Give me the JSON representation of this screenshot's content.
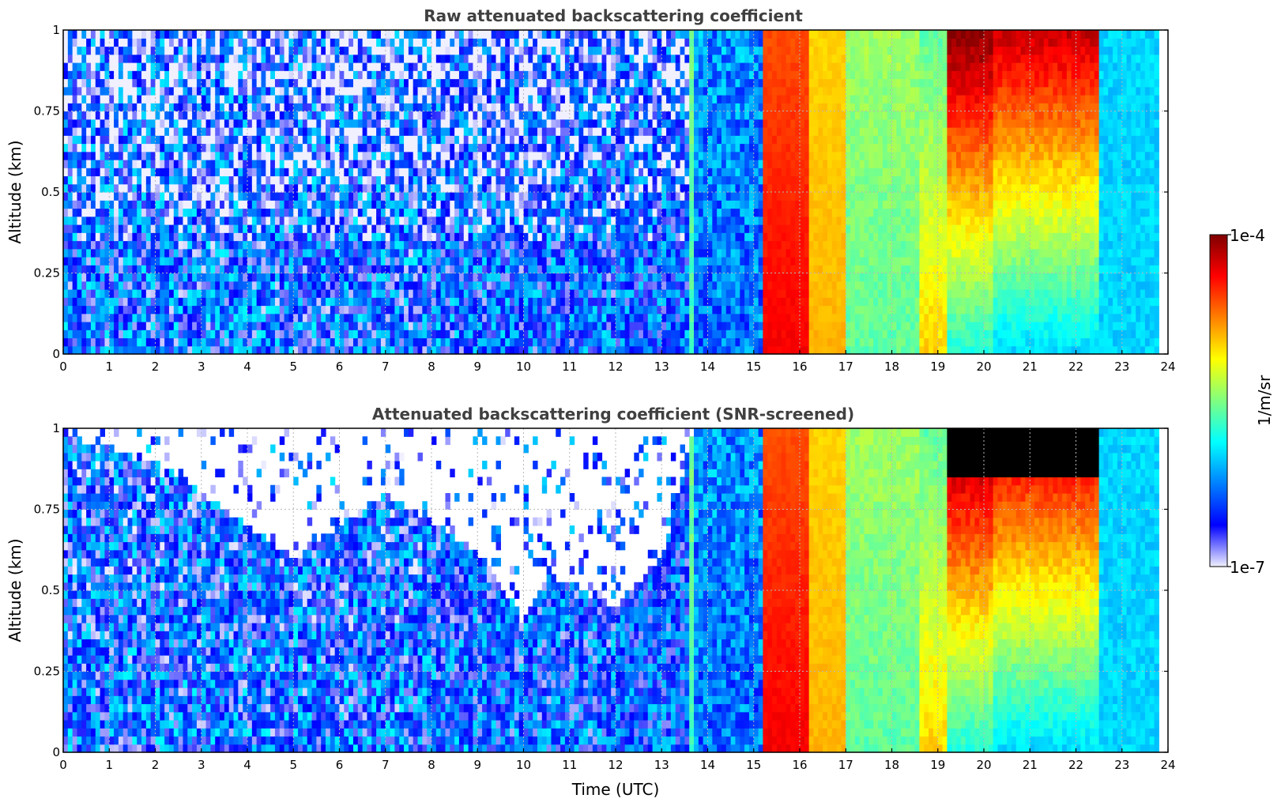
{
  "chart_data": [
    {
      "type": "heatmap",
      "title": "Raw attenuated backscattering coefficient",
      "xlabel": "",
      "ylabel": "Altitude (km)",
      "xlim": [
        0,
        24
      ],
      "ylim": [
        0,
        1
      ],
      "xticks": [
        "0",
        "1",
        "2",
        "3",
        "4",
        "5",
        "6",
        "7",
        "8",
        "9",
        "10",
        "11",
        "12",
        "13",
        "14",
        "15",
        "16",
        "17",
        "18",
        "19",
        "20",
        "21",
        "22",
        "23",
        "24"
      ],
      "yticks": [
        "0",
        "0.25",
        "0.5",
        "0.75",
        "1"
      ],
      "grid": true,
      "colorscale": "jet (log)",
      "time_segments": [
        {
          "x": [
            0,
            4
          ],
          "surface": -6.4,
          "aloft": -6.5,
          "noise": 0.55
        },
        {
          "x": [
            4,
            8
          ],
          "surface": -6.4,
          "aloft": -6.5,
          "noise": 0.55
        },
        {
          "x": [
            8,
            12
          ],
          "surface": -6.4,
          "aloft": -6.5,
          "noise": 0.5
        },
        {
          "x": [
            12,
            13.6
          ],
          "surface": -6.4,
          "aloft": -6.45,
          "noise": 0.45
        },
        {
          "x": [
            13.6,
            13.75
          ],
          "surface": -5.7,
          "aloft": -5.5,
          "noise": 0.1
        },
        {
          "x": [
            13.75,
            15.2
          ],
          "surface": -6.3,
          "aloft": -6.2,
          "noise": 0.3
        },
        {
          "x": [
            15.2,
            16.2
          ],
          "surface": -4.35,
          "aloft": -4.6,
          "noise": 0.05
        },
        {
          "x": [
            16.2,
            17.0
          ],
          "surface": -4.9,
          "aloft": -5.0,
          "noise": 0.05
        },
        {
          "x": [
            17.0,
            18.6
          ],
          "surface": -5.6,
          "aloft": -5.4,
          "noise": 0.1
        },
        {
          "x": [
            18.6,
            19.2
          ],
          "surface": -5.0,
          "aloft": -5.6,
          "noise": 0.1
        },
        {
          "x": [
            19.2,
            20.2
          ],
          "surface": -5.8,
          "aloft": -4.0,
          "noise": 0.1
        },
        {
          "x": [
            20.2,
            22.5
          ],
          "surface": -6.0,
          "aloft": -4.2,
          "noise": 0.1
        },
        {
          "x": [
            22.5,
            23.8
          ],
          "surface": -6.0,
          "aloft": -6.0,
          "noise": 0.1
        }
      ]
    },
    {
      "type": "heatmap",
      "title": "Attenuated backscattering coefficient (SNR-screened)",
      "xlabel": "Time (UTC)",
      "ylabel": "Altitude (km)",
      "xlim": [
        0,
        24
      ],
      "ylim": [
        0,
        1
      ],
      "xticks": [
        "0",
        "1",
        "2",
        "3",
        "4",
        "5",
        "6",
        "7",
        "8",
        "9",
        "10",
        "11",
        "12",
        "13",
        "14",
        "15",
        "16",
        "17",
        "18",
        "19",
        "20",
        "21",
        "22",
        "23",
        "24"
      ],
      "yticks": [
        "0",
        "0.25",
        "0.5",
        "0.75",
        "1"
      ],
      "grid": true,
      "colorscale": "jet (log)",
      "screen_top_km": [
        {
          "x": 0,
          "y": 0.98
        },
        {
          "x": 2,
          "y": 0.9
        },
        {
          "x": 4,
          "y": 0.7
        },
        {
          "x": 5,
          "y": 0.6
        },
        {
          "x": 7,
          "y": 0.8
        },
        {
          "x": 9,
          "y": 0.62
        },
        {
          "x": 10,
          "y": 0.4
        },
        {
          "x": 10.5,
          "y": 0.55
        },
        {
          "x": 12,
          "y": 0.45
        },
        {
          "x": 13,
          "y": 0.6
        },
        {
          "x": 13.7,
          "y": 1.0
        }
      ]
    }
  ],
  "colorbar": {
    "label": "1/m/sr",
    "max_label": "1e-4",
    "min_label": "1e-7",
    "range_log10": [
      -7,
      -4
    ],
    "colors": [
      "#f0f0ff",
      "#0000ff",
      "#0080ff",
      "#00ffff",
      "#80ff80",
      "#ffff00",
      "#ff8000",
      "#ff0000",
      "#800000"
    ]
  }
}
